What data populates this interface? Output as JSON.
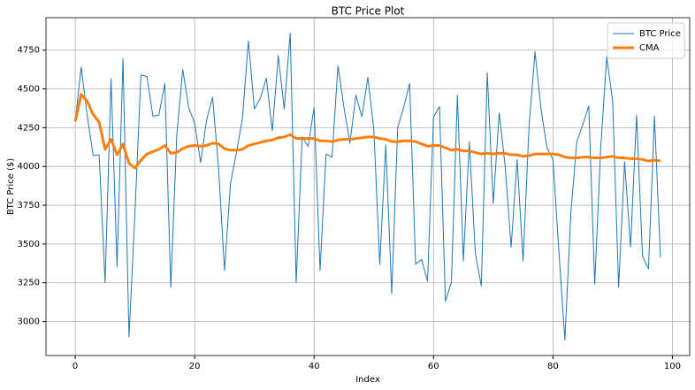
{
  "chart_data": {
    "type": "line",
    "title": "BTC Price Plot",
    "x_label": "Index",
    "y_label": "BTC Price ($)",
    "x": [
      0,
      1,
      2,
      3,
      4,
      5,
      6,
      7,
      8,
      9,
      10,
      11,
      12,
      13,
      14,
      15,
      16,
      17,
      18,
      19,
      20,
      21,
      22,
      23,
      24,
      25,
      26,
      27,
      28,
      29,
      30,
      31,
      32,
      33,
      34,
      35,
      36,
      37,
      38,
      39,
      40,
      41,
      42,
      43,
      44,
      45,
      46,
      47,
      48,
      49,
      50,
      51,
      52,
      53,
      54,
      55,
      56,
      57,
      58,
      59,
      60,
      61,
      62,
      63,
      64,
      65,
      66,
      67,
      68,
      69,
      70,
      71,
      72,
      73,
      74,
      75,
      76,
      77,
      78,
      79,
      80,
      81,
      82,
      83,
      84,
      85,
      86,
      87,
      88,
      89,
      90,
      91,
      92,
      93,
      94,
      95,
      96,
      97,
      98
    ],
    "series": [
      {
        "name": "BTC Price",
        "color": "#1f77b4",
        "width": 1,
        "values": [
          4290,
          4640,
          4330,
          4070,
          4075,
          3250,
          4565,
          3355,
          4695,
          2900,
          3700,
          4590,
          4580,
          4325,
          4330,
          4535,
          3220,
          4200,
          4625,
          4380,
          4280,
          4025,
          4300,
          4445,
          3990,
          3330,
          3890,
          4090,
          4310,
          4810,
          4370,
          4440,
          4570,
          4230,
          4715,
          4370,
          4860,
          3250,
          4190,
          4130,
          4380,
          3330,
          4080,
          4060,
          4650,
          4380,
          4150,
          4460,
          4320,
          4575,
          4240,
          3370,
          4140,
          3180,
          4250,
          4380,
          4535,
          3370,
          3400,
          3260,
          4320,
          4385,
          3130,
          3255,
          4460,
          3390,
          4160,
          3440,
          3230,
          4605,
          3760,
          4345,
          4000,
          3480,
          4045,
          3390,
          4260,
          4740,
          4370,
          4120,
          4045,
          3450,
          2880,
          3700,
          4160,
          4270,
          4390,
          3240,
          4120,
          4705,
          4420,
          3220,
          4030,
          3480,
          4330,
          3420,
          3340,
          4325,
          3415
        ]
      },
      {
        "name": "CMA",
        "color": "#ff7f0e",
        "width": 3,
        "values": [
          4290,
          4465,
          4420,
          4335,
          4285,
          4110,
          4175,
          4075,
          4145,
          4020,
          3990,
          4040,
          4080,
          4095,
          4110,
          4135,
          4085,
          4090,
          4115,
          4130,
          4135,
          4130,
          4135,
          4150,
          4145,
          4115,
          4105,
          4105,
          4110,
          4135,
          4145,
          4155,
          4165,
          4170,
          4185,
          4190,
          4205,
          4180,
          4180,
          4180,
          4180,
          4165,
          4165,
          4160,
          4170,
          4175,
          4175,
          4180,
          4185,
          4190,
          4190,
          4180,
          4175,
          4160,
          4160,
          4165,
          4165,
          4160,
          4145,
          4130,
          4135,
          4135,
          4120,
          4105,
          4110,
          4100,
          4100,
          4090,
          4080,
          4085,
          4080,
          4085,
          4085,
          4075,
          4075,
          4065,
          4070,
          4080,
          4080,
          4080,
          4080,
          4075,
          4060,
          4055,
          4055,
          4060,
          4060,
          4055,
          4055,
          4060,
          4065,
          4055,
          4055,
          4050,
          4050,
          4045,
          4035,
          4040,
          4035
        ]
      }
    ],
    "xlim": [
      -4.9,
      102.9
    ],
    "ylim": [
      2781,
      4959
    ],
    "xticks": [
      0,
      20,
      40,
      60,
      80,
      100
    ],
    "yticks": [
      3000,
      3250,
      3500,
      3750,
      4000,
      4250,
      4500,
      4750
    ],
    "grid": true,
    "legend": "upper right"
  }
}
